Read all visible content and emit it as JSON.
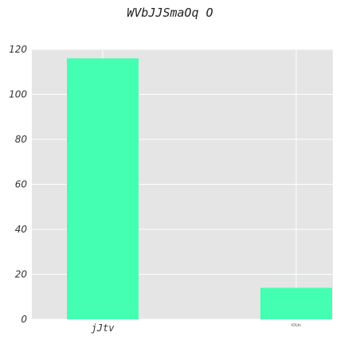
{
  "chart_data": {
    "type": "bar",
    "title": "WVbJJSmaOq O",
    "xlabel": "",
    "ylabel": "",
    "categories": [
      "jJtv",
      "lOUn"
    ],
    "values": [
      116,
      14
    ],
    "ylim": [
      0,
      120
    ],
    "yticks": [
      0,
      20,
      40,
      60,
      80,
      100,
      120
    ],
    "grid": true,
    "colors": {
      "bar": "#44ffb1",
      "background": "#e5e5e5",
      "grid": "#ffffff"
    }
  }
}
